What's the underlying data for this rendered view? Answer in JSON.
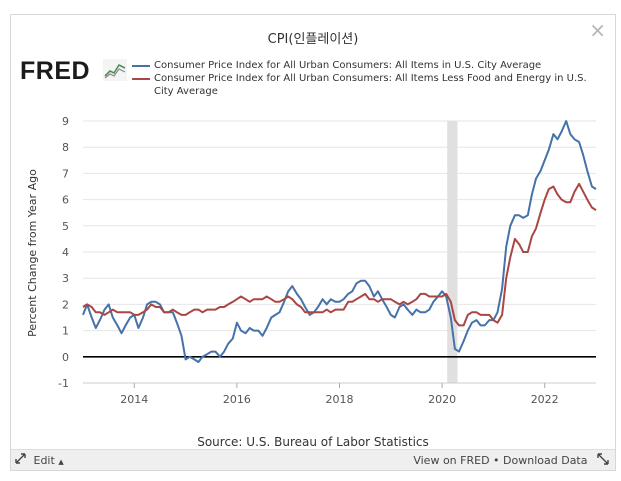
{
  "window": {
    "title": "CPI(인플레이션)",
    "close_glyph": "×"
  },
  "brand": {
    "logo_text": "FRED",
    "logo_icon": "trend-lines-icon"
  },
  "chart_data": {
    "type": "line",
    "ylabel": "Percent Change from Year Ago",
    "xlabel": "",
    "ylim": [
      -1,
      9
    ],
    "xlim": [
      2013.0,
      2023.0
    ],
    "yticks": [
      -1,
      0,
      1,
      2,
      3,
      4,
      5,
      6,
      7,
      8,
      9
    ],
    "xticks": [
      2014,
      2016,
      2018,
      2020,
      2022
    ],
    "recession_shading": [
      2020.1,
      2020.3
    ],
    "zero_line": true,
    "grid": "horizontal",
    "colors": {
      "series_1": "#4572a7",
      "series_2": "#aa4643",
      "recession": "#e0e0e0",
      "zero_line": "#000000"
    },
    "series": [
      {
        "name": "Consumer Price Index for All Urban Consumers: All Items in U.S. City Average",
        "points": [
          [
            2013.0,
            1.6
          ],
          [
            2013.08,
            2.0
          ],
          [
            2013.17,
            1.5
          ],
          [
            2013.25,
            1.1
          ],
          [
            2013.33,
            1.4
          ],
          [
            2013.42,
            1.8
          ],
          [
            2013.5,
            2.0
          ],
          [
            2013.58,
            1.5
          ],
          [
            2013.67,
            1.2
          ],
          [
            2013.75,
            0.9
          ],
          [
            2013.83,
            1.2
          ],
          [
            2013.92,
            1.5
          ],
          [
            2014.0,
            1.6
          ],
          [
            2014.08,
            1.1
          ],
          [
            2014.17,
            1.5
          ],
          [
            2014.25,
            2.0
          ],
          [
            2014.33,
            2.1
          ],
          [
            2014.42,
            2.1
          ],
          [
            2014.5,
            2.0
          ],
          [
            2014.58,
            1.7
          ],
          [
            2014.67,
            1.7
          ],
          [
            2014.75,
            1.7
          ],
          [
            2014.83,
            1.3
          ],
          [
            2014.92,
            0.8
          ],
          [
            2015.0,
            -0.1
          ],
          [
            2015.08,
            0.0
          ],
          [
            2015.17,
            -0.1
          ],
          [
            2015.25,
            -0.2
          ],
          [
            2015.33,
            0.0
          ],
          [
            2015.42,
            0.1
          ],
          [
            2015.5,
            0.2
          ],
          [
            2015.58,
            0.2
          ],
          [
            2015.67,
            0.0
          ],
          [
            2015.75,
            0.2
          ],
          [
            2015.83,
            0.5
          ],
          [
            2015.92,
            0.7
          ],
          [
            2016.0,
            1.3
          ],
          [
            2016.08,
            1.0
          ],
          [
            2016.17,
            0.9
          ],
          [
            2016.25,
            1.1
          ],
          [
            2016.33,
            1.0
          ],
          [
            2016.42,
            1.0
          ],
          [
            2016.5,
            0.8
          ],
          [
            2016.58,
            1.1
          ],
          [
            2016.67,
            1.5
          ],
          [
            2016.75,
            1.6
          ],
          [
            2016.83,
            1.7
          ],
          [
            2016.92,
            2.1
          ],
          [
            2017.0,
            2.5
          ],
          [
            2017.08,
            2.7
          ],
          [
            2017.17,
            2.4
          ],
          [
            2017.25,
            2.2
          ],
          [
            2017.33,
            1.9
          ],
          [
            2017.42,
            1.6
          ],
          [
            2017.5,
            1.7
          ],
          [
            2017.58,
            1.9
          ],
          [
            2017.67,
            2.2
          ],
          [
            2017.75,
            2.0
          ],
          [
            2017.83,
            2.2
          ],
          [
            2017.92,
            2.1
          ],
          [
            2018.0,
            2.1
          ],
          [
            2018.08,
            2.2
          ],
          [
            2018.17,
            2.4
          ],
          [
            2018.25,
            2.5
          ],
          [
            2018.33,
            2.8
          ],
          [
            2018.42,
            2.9
          ],
          [
            2018.5,
            2.9
          ],
          [
            2018.58,
            2.7
          ],
          [
            2018.67,
            2.3
          ],
          [
            2018.75,
            2.5
          ],
          [
            2018.83,
            2.2
          ],
          [
            2018.92,
            1.9
          ],
          [
            2019.0,
            1.6
          ],
          [
            2019.08,
            1.5
          ],
          [
            2019.17,
            1.9
          ],
          [
            2019.25,
            2.0
          ],
          [
            2019.33,
            1.8
          ],
          [
            2019.42,
            1.6
          ],
          [
            2019.5,
            1.8
          ],
          [
            2019.58,
            1.7
          ],
          [
            2019.67,
            1.7
          ],
          [
            2019.75,
            1.8
          ],
          [
            2019.83,
            2.1
          ],
          [
            2019.92,
            2.3
          ],
          [
            2020.0,
            2.5
          ],
          [
            2020.08,
            2.3
          ],
          [
            2020.17,
            1.5
          ],
          [
            2020.25,
            0.3
          ],
          [
            2020.33,
            0.2
          ],
          [
            2020.42,
            0.6
          ],
          [
            2020.5,
            1.0
          ],
          [
            2020.58,
            1.3
          ],
          [
            2020.67,
            1.4
          ],
          [
            2020.75,
            1.2
          ],
          [
            2020.83,
            1.2
          ],
          [
            2020.92,
            1.4
          ],
          [
            2021.0,
            1.4
          ],
          [
            2021.08,
            1.7
          ],
          [
            2021.17,
            2.6
          ],
          [
            2021.25,
            4.2
          ],
          [
            2021.33,
            5.0
          ],
          [
            2021.42,
            5.4
          ],
          [
            2021.5,
            5.4
          ],
          [
            2021.58,
            5.3
          ],
          [
            2021.67,
            5.4
          ],
          [
            2021.75,
            6.2
          ],
          [
            2021.83,
            6.8
          ],
          [
            2021.92,
            7.1
          ],
          [
            2022.0,
            7.5
          ],
          [
            2022.08,
            7.9
          ],
          [
            2022.17,
            8.5
          ],
          [
            2022.25,
            8.3
          ],
          [
            2022.33,
            8.6
          ],
          [
            2022.42,
            9.0
          ],
          [
            2022.5,
            8.5
          ],
          [
            2022.58,
            8.3
          ],
          [
            2022.67,
            8.2
          ],
          [
            2022.75,
            7.7
          ],
          [
            2022.83,
            7.1
          ],
          [
            2022.92,
            6.5
          ],
          [
            2023.0,
            6.4
          ]
        ]
      },
      {
        "name": "Consumer Price Index for All Urban Consumers: All Items Less Food and Energy in U.S. City Average",
        "points": [
          [
            2013.0,
            1.9
          ],
          [
            2013.08,
            2.0
          ],
          [
            2013.17,
            1.9
          ],
          [
            2013.25,
            1.7
          ],
          [
            2013.33,
            1.7
          ],
          [
            2013.42,
            1.6
          ],
          [
            2013.5,
            1.7
          ],
          [
            2013.58,
            1.8
          ],
          [
            2013.67,
            1.7
          ],
          [
            2013.75,
            1.7
          ],
          [
            2013.83,
            1.7
          ],
          [
            2013.92,
            1.7
          ],
          [
            2014.0,
            1.6
          ],
          [
            2014.08,
            1.6
          ],
          [
            2014.17,
            1.7
          ],
          [
            2014.25,
            1.8
          ],
          [
            2014.33,
            2.0
          ],
          [
            2014.42,
            1.9
          ],
          [
            2014.5,
            1.9
          ],
          [
            2014.58,
            1.7
          ],
          [
            2014.67,
            1.7
          ],
          [
            2014.75,
            1.8
          ],
          [
            2014.83,
            1.7
          ],
          [
            2014.92,
            1.6
          ],
          [
            2015.0,
            1.6
          ],
          [
            2015.08,
            1.7
          ],
          [
            2015.17,
            1.8
          ],
          [
            2015.25,
            1.8
          ],
          [
            2015.33,
            1.7
          ],
          [
            2015.42,
            1.8
          ],
          [
            2015.5,
            1.8
          ],
          [
            2015.58,
            1.8
          ],
          [
            2015.67,
            1.9
          ],
          [
            2015.75,
            1.9
          ],
          [
            2015.83,
            2.0
          ],
          [
            2015.92,
            2.1
          ],
          [
            2016.0,
            2.2
          ],
          [
            2016.08,
            2.3
          ],
          [
            2016.17,
            2.2
          ],
          [
            2016.25,
            2.1
          ],
          [
            2016.33,
            2.2
          ],
          [
            2016.42,
            2.2
          ],
          [
            2016.5,
            2.2
          ],
          [
            2016.58,
            2.3
          ],
          [
            2016.67,
            2.2
          ],
          [
            2016.75,
            2.1
          ],
          [
            2016.83,
            2.1
          ],
          [
            2016.92,
            2.2
          ],
          [
            2017.0,
            2.3
          ],
          [
            2017.08,
            2.2
          ],
          [
            2017.17,
            2.0
          ],
          [
            2017.25,
            1.9
          ],
          [
            2017.33,
            1.7
          ],
          [
            2017.42,
            1.7
          ],
          [
            2017.5,
            1.7
          ],
          [
            2017.58,
            1.7
          ],
          [
            2017.67,
            1.7
          ],
          [
            2017.75,
            1.8
          ],
          [
            2017.83,
            1.7
          ],
          [
            2017.92,
            1.8
          ],
          [
            2018.0,
            1.8
          ],
          [
            2018.08,
            1.8
          ],
          [
            2018.17,
            2.1
          ],
          [
            2018.25,
            2.1
          ],
          [
            2018.33,
            2.2
          ],
          [
            2018.42,
            2.3
          ],
          [
            2018.5,
            2.4
          ],
          [
            2018.58,
            2.2
          ],
          [
            2018.67,
            2.2
          ],
          [
            2018.75,
            2.1
          ],
          [
            2018.83,
            2.2
          ],
          [
            2018.92,
            2.2
          ],
          [
            2019.0,
            2.2
          ],
          [
            2019.08,
            2.1
          ],
          [
            2019.17,
            2.0
          ],
          [
            2019.25,
            2.1
          ],
          [
            2019.33,
            2.0
          ],
          [
            2019.42,
            2.1
          ],
          [
            2019.5,
            2.2
          ],
          [
            2019.58,
            2.4
          ],
          [
            2019.67,
            2.4
          ],
          [
            2019.75,
            2.3
          ],
          [
            2019.83,
            2.3
          ],
          [
            2019.92,
            2.3
          ],
          [
            2020.0,
            2.3
          ],
          [
            2020.08,
            2.4
          ],
          [
            2020.17,
            2.1
          ],
          [
            2020.25,
            1.4
          ],
          [
            2020.33,
            1.2
          ],
          [
            2020.42,
            1.2
          ],
          [
            2020.5,
            1.6
          ],
          [
            2020.58,
            1.7
          ],
          [
            2020.67,
            1.7
          ],
          [
            2020.75,
            1.6
          ],
          [
            2020.83,
            1.6
          ],
          [
            2020.92,
            1.6
          ],
          [
            2021.0,
            1.4
          ],
          [
            2021.08,
            1.3
          ],
          [
            2021.17,
            1.6
          ],
          [
            2021.25,
            3.0
          ],
          [
            2021.33,
            3.8
          ],
          [
            2021.42,
            4.5
          ],
          [
            2021.5,
            4.3
          ],
          [
            2021.58,
            4.0
          ],
          [
            2021.67,
            4.0
          ],
          [
            2021.75,
            4.6
          ],
          [
            2021.83,
            4.9
          ],
          [
            2021.92,
            5.5
          ],
          [
            2022.0,
            6.0
          ],
          [
            2022.08,
            6.4
          ],
          [
            2022.17,
            6.5
          ],
          [
            2022.25,
            6.2
          ],
          [
            2022.33,
            6.0
          ],
          [
            2022.42,
            5.9
          ],
          [
            2022.5,
            5.9
          ],
          [
            2022.58,
            6.3
          ],
          [
            2022.67,
            6.6
          ],
          [
            2022.75,
            6.3
          ],
          [
            2022.83,
            6.0
          ],
          [
            2022.92,
            5.7
          ],
          [
            2023.0,
            5.6
          ]
        ]
      }
    ],
    "source": "Source: U.S. Bureau of Labor Statistics"
  },
  "footer": {
    "edit_label": "Edit",
    "edit_caret": "▲",
    "view_on_fred": "View on FRED",
    "separator": "•",
    "download_data": "Download Data"
  }
}
